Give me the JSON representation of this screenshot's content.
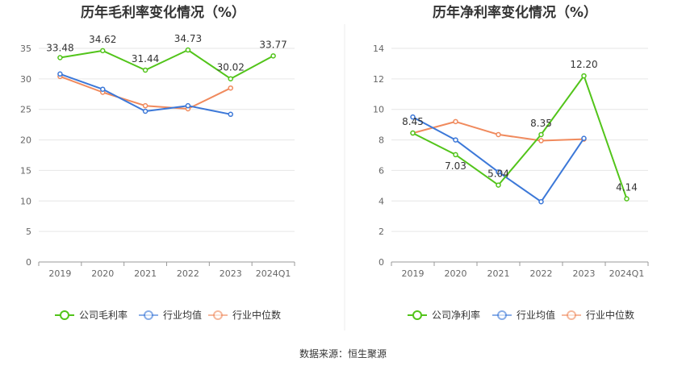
{
  "source": "数据来源：恒生聚源",
  "chart_data": [
    {
      "type": "line",
      "title": "历年毛利率变化情况（%）",
      "categories": [
        "2019",
        "2020",
        "2021",
        "2022",
        "2023",
        "2024Q1"
      ],
      "ylim": [
        0,
        35
      ],
      "yticks": [
        0,
        5,
        10,
        15,
        20,
        25,
        30,
        35
      ],
      "grid": true,
      "legend_position": "bottom",
      "series": [
        {
          "name": "公司毛利率",
          "color": "#52c41a",
          "values": [
            33.48,
            34.62,
            31.44,
            34.73,
            30.02,
            33.77
          ],
          "labels": [
            "33.48",
            "34.62",
            "31.44",
            "34.73",
            "30.02",
            "33.77"
          ]
        },
        {
          "name": "行业均值",
          "color": "#3c78d8",
          "values": [
            30.8,
            28.3,
            24.7,
            25.6,
            24.2,
            null
          ]
        },
        {
          "name": "行业中位数",
          "color": "#f08a5d",
          "values": [
            30.4,
            27.8,
            25.6,
            25.1,
            28.5,
            null
          ]
        }
      ]
    },
    {
      "type": "line",
      "title": "历年净利率变化情况（%）",
      "categories": [
        "2019",
        "2020",
        "2021",
        "2022",
        "2023",
        "2024Q1"
      ],
      "ylim": [
        0,
        14
      ],
      "yticks": [
        0,
        2,
        4,
        6,
        8,
        10,
        12,
        14
      ],
      "grid": true,
      "legend_position": "bottom",
      "series": [
        {
          "name": "公司净利率",
          "color": "#52c41a",
          "values": [
            8.45,
            7.03,
            5.04,
            8.35,
            12.2,
            4.14
          ],
          "labels": [
            "8.45",
            "7.03",
            "5.04",
            "8.35",
            "12.20",
            "4.14"
          ]
        },
        {
          "name": "行业均值",
          "color": "#3c78d8",
          "values": [
            9.5,
            8.0,
            5.9,
            3.95,
            8.1,
            null
          ]
        },
        {
          "name": "行业中位数",
          "color": "#f08a5d",
          "values": [
            8.45,
            9.2,
            8.35,
            7.95,
            8.05,
            null
          ]
        }
      ]
    }
  ]
}
